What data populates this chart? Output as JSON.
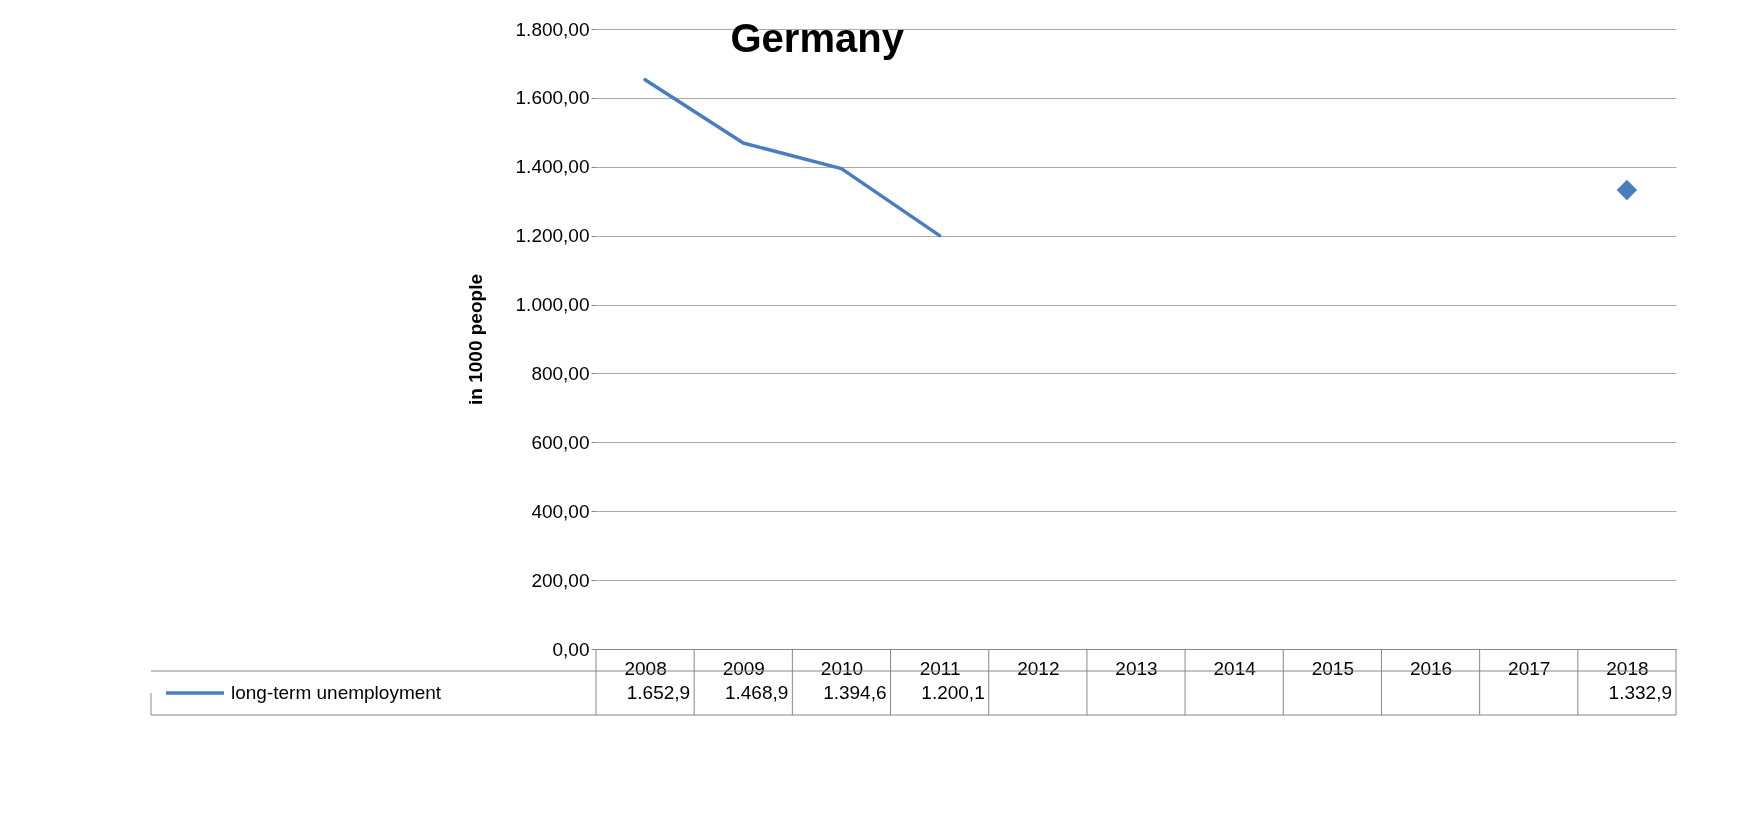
{
  "chart_data": {
    "type": "line",
    "title": "Germany",
    "ylabel": "in 1000 people",
    "categories": [
      "2008",
      "2009",
      "2010",
      "2011",
      "2012",
      "2013",
      "2014",
      "2015",
      "2016",
      "2017",
      "2018"
    ],
    "series": [
      {
        "name": "long-term unemployment",
        "color": "#4a7ebb",
        "values": [
          1652.9,
          1468.9,
          1394.6,
          1200.1,
          null,
          null,
          null,
          null,
          null,
          null,
          1332.9
        ],
        "value_labels": [
          "1.652,9",
          "1.468,9",
          "1.394,6",
          "1.200,1",
          null,
          null,
          null,
          null,
          null,
          null,
          "1.332,9"
        ]
      }
    ],
    "ylim": [
      0,
      1800
    ],
    "yticks": [
      {
        "value": 0,
        "label": "0,00"
      },
      {
        "value": 200,
        "label": "200,00"
      },
      {
        "value": 400,
        "label": "400,00"
      },
      {
        "value": 600,
        "label": "600,00"
      },
      {
        "value": 800,
        "label": "800,00"
      },
      {
        "value": 1000,
        "label": "1.000,00"
      },
      {
        "value": 1200,
        "label": "1.200,00"
      },
      {
        "value": 1400,
        "label": "1.400,00"
      },
      {
        "value": 1600,
        "label": "1.600,00"
      },
      {
        "value": 1800,
        "label": "1.800,00"
      }
    ],
    "grid": "y",
    "legend": "bottom",
    "line_style": "solid"
  }
}
